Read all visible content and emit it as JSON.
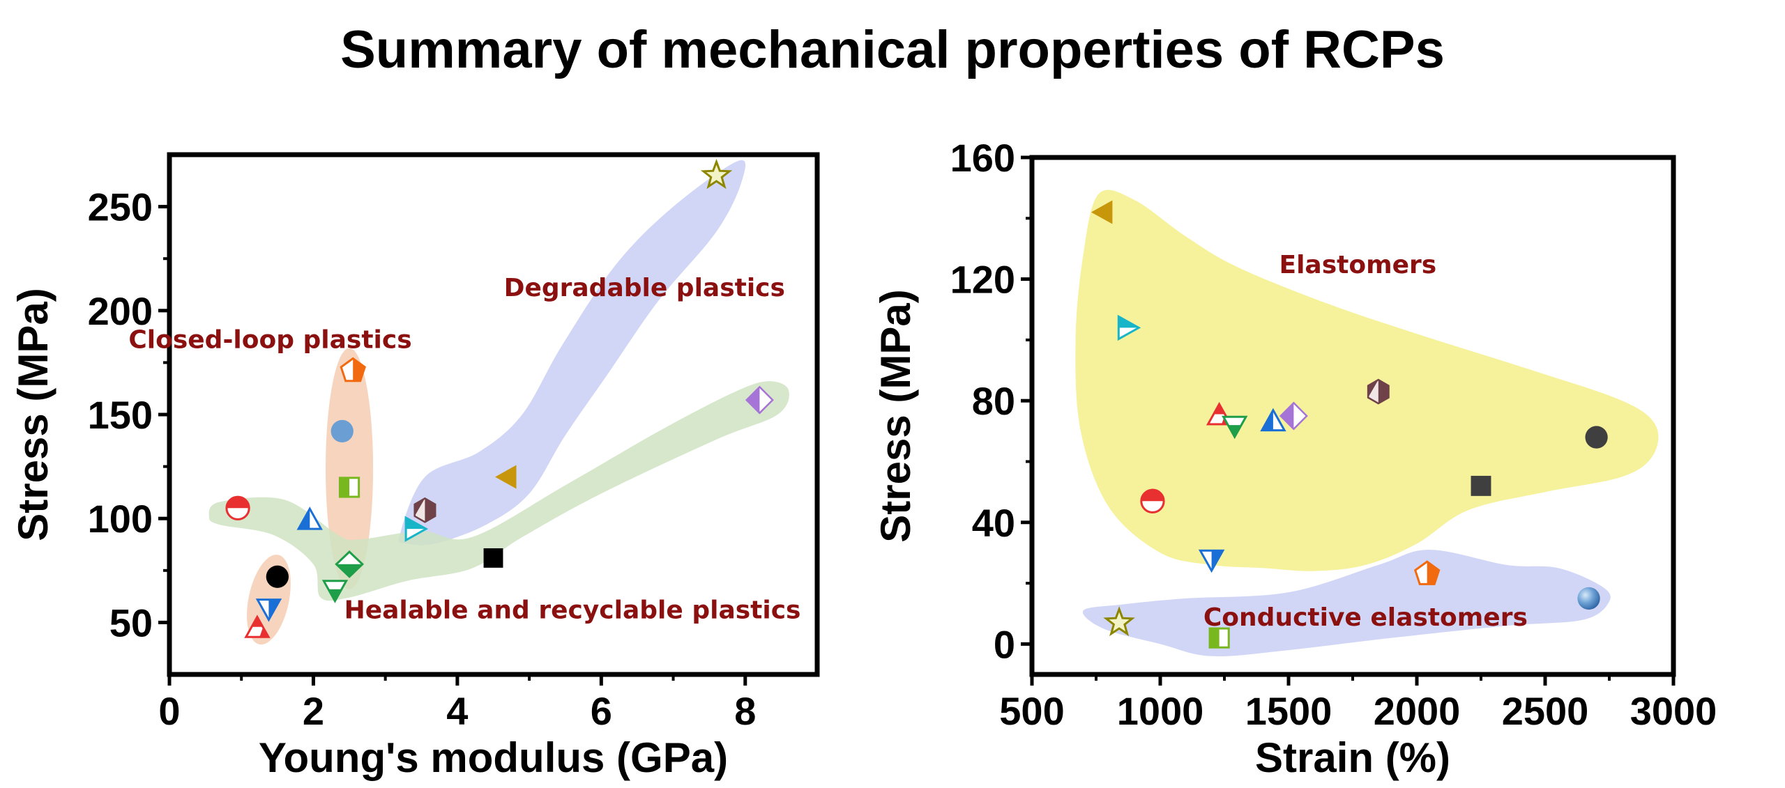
{
  "title": "Summary of mechanical properties of RCPs",
  "chart_data": [
    {
      "type": "scatter",
      "xlabel": "Young's modulus (GPa)",
      "ylabel": "Stress (MPa)",
      "xlim": [
        0,
        9
      ],
      "ylim": [
        25,
        275
      ],
      "xticks": [
        0,
        2,
        4,
        6,
        8
      ],
      "yticks": [
        50,
        100,
        150,
        200,
        250
      ],
      "grid": false,
      "regions": [
        {
          "label": "Closed-loop plastics",
          "color": "#F5C9AE",
          "shape": "closed-loop",
          "label_x": 1.4,
          "label_y": 182
        },
        {
          "label": "Degradable plastics",
          "color": "#C9CFF5",
          "shape": "degradable",
          "label_x": 6.6,
          "label_y": 207
        },
        {
          "label": "Healable and recyclable plastics",
          "color": "#CFE3C2",
          "shape": "healable",
          "label_x": 5.6,
          "label_y": 52
        }
      ],
      "points": [
        {
          "x": 7.6,
          "y": 265,
          "marker": "star-olive"
        },
        {
          "x": 4.7,
          "y": 120,
          "marker": "tri-left-gold"
        },
        {
          "x": 3.55,
          "y": 104,
          "marker": "hex-brown"
        },
        {
          "x": 3.4,
          "y": 95,
          "marker": "tri-right-cyan"
        },
        {
          "x": 4.5,
          "y": 81,
          "marker": "square-black"
        },
        {
          "x": 8.2,
          "y": 157,
          "marker": "diamond-purple"
        },
        {
          "x": 2.55,
          "y": 171,
          "marker": "pent-orange"
        },
        {
          "x": 2.4,
          "y": 142,
          "marker": "circle-blue"
        },
        {
          "x": 2.5,
          "y": 115,
          "marker": "square-green-half"
        },
        {
          "x": 0.95,
          "y": 105,
          "marker": "circle-red-half"
        },
        {
          "x": 1.95,
          "y": 99,
          "marker": "tri-up-blue-half"
        },
        {
          "x": 2.5,
          "y": 78,
          "marker": "diamond-green-half"
        },
        {
          "x": 2.3,
          "y": 66,
          "marker": "tri-down-green-half"
        },
        {
          "x": 1.5,
          "y": 72,
          "marker": "circle-black"
        },
        {
          "x": 1.38,
          "y": 57,
          "marker": "tri-down-blue-half"
        },
        {
          "x": 1.22,
          "y": 47,
          "marker": "tri-up-red-half"
        }
      ]
    },
    {
      "type": "scatter",
      "xlabel": "Strain (%)",
      "ylabel": "Stress (MPa)",
      "xlim": [
        500,
        3000
      ],
      "ylim": [
        -10,
        160
      ],
      "xticks": [
        500,
        1000,
        1500,
        2000,
        2500,
        3000
      ],
      "yticks": [
        0,
        40,
        80,
        120,
        160
      ],
      "grid": false,
      "regions": [
        {
          "label": "Elastomers",
          "color": "#F3F08A",
          "shape": "elastomers",
          "label_x": 1770,
          "label_y": 122
        },
        {
          "label": "Conductive elastomers",
          "color": "#C9CFF5",
          "shape": "conductive",
          "label_x": 1800,
          "label_y": 6
        }
      ],
      "points": [
        {
          "x": 780,
          "y": 142,
          "marker": "tri-left-gold"
        },
        {
          "x": 870,
          "y": 104,
          "marker": "tri-right-cyan"
        },
        {
          "x": 1230,
          "y": 75,
          "marker": "tri-up-red-half"
        },
        {
          "x": 1290,
          "y": 72,
          "marker": "tri-down-green-half"
        },
        {
          "x": 1440,
          "y": 73,
          "marker": "tri-up-blue-half"
        },
        {
          "x": 1520,
          "y": 75,
          "marker": "diamond-purple"
        },
        {
          "x": 1850,
          "y": 83,
          "marker": "hex-brown"
        },
        {
          "x": 2700,
          "y": 68,
          "marker": "circle-darkgray"
        },
        {
          "x": 970,
          "y": 47,
          "marker": "circle-red-half"
        },
        {
          "x": 2250,
          "y": 52,
          "marker": "square-darkgray"
        },
        {
          "x": 1200,
          "y": 28,
          "marker": "tri-down-blue-half"
        },
        {
          "x": 2040,
          "y": 23,
          "marker": "pent-orange"
        },
        {
          "x": 2670,
          "y": 15,
          "marker": "sphere-blue"
        },
        {
          "x": 840,
          "y": 7,
          "marker": "star-olive"
        },
        {
          "x": 1230,
          "y": 2,
          "marker": "square-green-half"
        }
      ]
    }
  ]
}
